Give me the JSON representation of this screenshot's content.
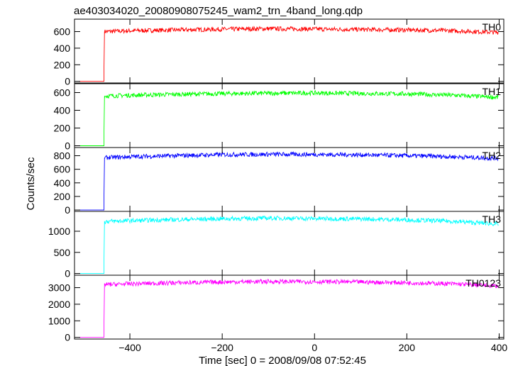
{
  "chart_data": {
    "type": "line",
    "title": "ae403034020_20080908075245_wam2_trn_4band_long.qdp",
    "xlabel": "Time [sec] 0 = 2008/09/08 07:52:45",
    "ylabel": "Counts/sec",
    "xlim": [
      -520,
      410
    ],
    "x_ticks": [
      -400,
      -200,
      0,
      200,
      400
    ],
    "x_tick_labels": [
      "−400",
      "−200",
      "0",
      "200",
      "400"
    ],
    "grid": false,
    "panels": [
      {
        "name": "TH0",
        "color": "#ff0000",
        "ylim": [
          -20,
          750
        ],
        "y_ticks": [
          0,
          200,
          400,
          600
        ],
        "y_tick_labels": [
          "0",
          "200",
          "400",
          "600"
        ],
        "step_time": -455,
        "pre_level": 0,
        "x": [
          -455,
          -400,
          -300,
          -200,
          -100,
          0,
          100,
          200,
          300,
          400
        ],
        "values": [
          600,
          610,
          620,
          628,
          635,
          630,
          625,
          620,
          610,
          590
        ]
      },
      {
        "name": "TH1",
        "color": "#00ff00",
        "ylim": [
          -20,
          700
        ],
        "y_ticks": [
          0,
          200,
          400,
          600
        ],
        "y_tick_labels": [
          "0",
          "200",
          "400",
          "600"
        ],
        "step_time": -455,
        "pre_level": 0,
        "x": [
          -455,
          -400,
          -300,
          -200,
          -100,
          0,
          100,
          200,
          300,
          400
        ],
        "values": [
          560,
          570,
          580,
          588,
          592,
          595,
          590,
          585,
          570,
          545
        ]
      },
      {
        "name": "TH2",
        "color": "#0000ff",
        "ylim": [
          -20,
          920
        ],
        "y_ticks": [
          0,
          200,
          400,
          600,
          800
        ],
        "y_tick_labels": [
          "0",
          "200",
          "400",
          "600",
          "800"
        ],
        "step_time": -455,
        "pre_level": 0,
        "x": [
          -455,
          -400,
          -300,
          -200,
          -100,
          0,
          100,
          200,
          300,
          400
        ],
        "values": [
          770,
          785,
          800,
          815,
          820,
          818,
          812,
          800,
          785,
          760
        ]
      },
      {
        "name": "TH3",
        "color": "#00ffff",
        "ylim": [
          -40,
          1470
        ],
        "y_ticks": [
          0,
          500,
          1000
        ],
        "y_tick_labels": [
          "0",
          "500",
          "1000"
        ],
        "step_time": -455,
        "pre_level": 0,
        "x": [
          -455,
          -400,
          -300,
          -200,
          -100,
          0,
          100,
          200,
          300,
          400
        ],
        "values": [
          1230,
          1250,
          1275,
          1295,
          1310,
          1300,
          1290,
          1270,
          1235,
          1170
        ]
      },
      {
        "name": "TH0123",
        "color": "#ff00ff",
        "ylim": [
          -100,
          3750
        ],
        "y_ticks": [
          0,
          1000,
          2000,
          3000
        ],
        "y_tick_labels": [
          "0",
          "1000",
          "2000",
          "3000"
        ],
        "step_time": -455,
        "pre_level": 0,
        "x": [
          -455,
          -400,
          -300,
          -200,
          -100,
          0,
          100,
          200,
          300,
          400
        ],
        "values": [
          3180,
          3230,
          3290,
          3340,
          3370,
          3360,
          3340,
          3300,
          3230,
          3100
        ]
      }
    ]
  }
}
